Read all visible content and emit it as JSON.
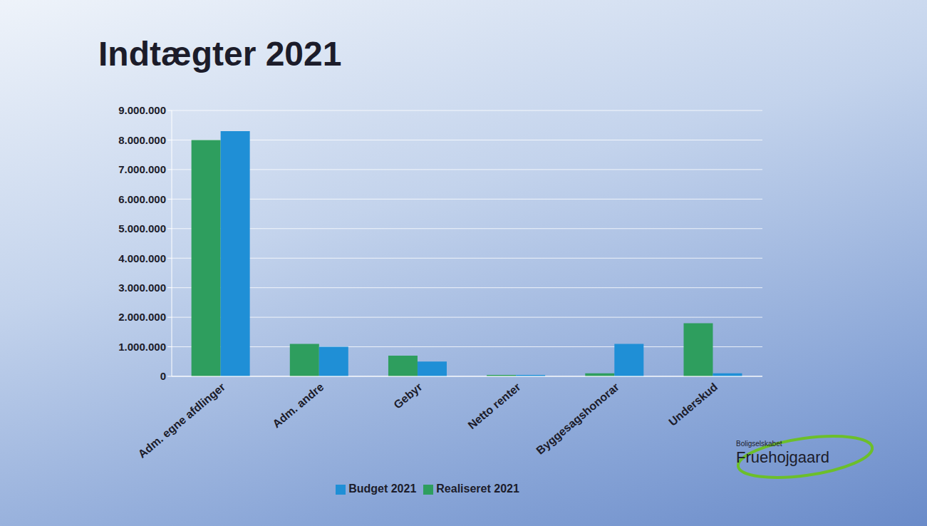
{
  "chart_data": {
    "type": "bar",
    "title": "Indtægter 2021",
    "categories": [
      "Adm. egne afdlinger",
      "Adm. andre",
      "Gebyr",
      "Netto renter",
      "Byggesagshonorar",
      "Underskud"
    ],
    "series": [
      {
        "name": "Realiseret 2021",
        "color": "#2e9e5e",
        "values": [
          8000000,
          1100000,
          700000,
          50000,
          100000,
          1800000
        ]
      },
      {
        "name": "Budget 2021",
        "color": "#1f8fd6",
        "values": [
          8300000,
          1000000,
          500000,
          50000,
          1100000,
          100000
        ]
      }
    ],
    "ylim": [
      0,
      9000000
    ],
    "yticks": [
      0,
      {
        "value": 1000000,
        "label": "1.000.000"
      },
      {
        "value": 2000000,
        "label": "2.000.000"
      },
      {
        "value": 3000000,
        "label": "3.000.000"
      },
      {
        "value": 4000000,
        "label": "4.000.000"
      },
      {
        "value": 5000000,
        "label": "5.000.000"
      },
      {
        "value": 6000000,
        "label": "6.000.000"
      },
      {
        "value": 7000000,
        "label": "7.000.000"
      },
      {
        "value": 8000000,
        "label": "8.000.000"
      },
      {
        "value": 9000000,
        "label": "9.000.000"
      }
    ],
    "grid": true,
    "legend": "bottom"
  },
  "logo": {
    "small": "Boligselskabet",
    "name": "Fruehojgaard"
  }
}
